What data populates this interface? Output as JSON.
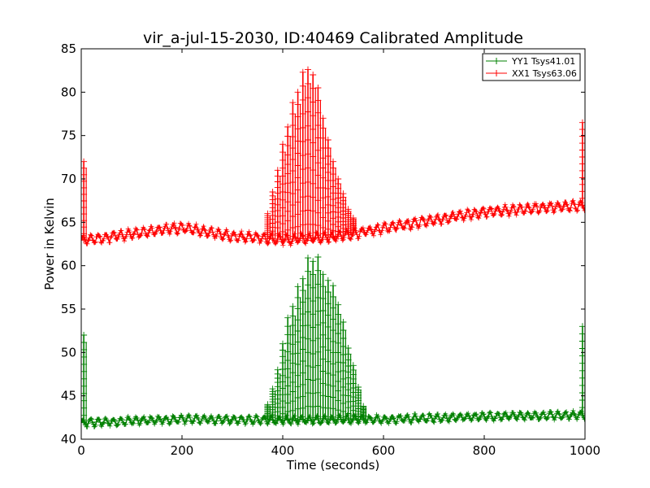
{
  "chart_data": {
    "type": "line",
    "title": "vir_a-jul-15-2030, ID:40469 Calibrated Amplitude",
    "xlabel": "Time (seconds)",
    "ylabel": "Power in Kelvin",
    "xlim": [
      0,
      1000
    ],
    "ylim": [
      40,
      85
    ],
    "xticks": [
      0,
      200,
      400,
      600,
      800,
      1000
    ],
    "yticks": [
      40,
      45,
      50,
      55,
      60,
      65,
      70,
      75,
      80,
      85
    ],
    "grid": false,
    "legend_position": "top-right",
    "marker": "+",
    "series": [
      {
        "name": "YY1 Tsys41.01",
        "color": "#008000",
        "baseline": [
          [
            0,
            41.9
          ],
          [
            200,
            42.3
          ],
          [
            400,
            42.2
          ],
          [
            600,
            42.3
          ],
          [
            800,
            42.6
          ],
          [
            1000,
            42.8
          ]
        ],
        "baseline_ripple": 0.4,
        "spikes": [
          [
            5,
            52.0
          ],
          [
            370,
            44.0
          ],
          [
            380,
            45.8
          ],
          [
            390,
            48.0
          ],
          [
            400,
            51.0
          ],
          [
            410,
            54.0
          ],
          [
            420,
            55.3
          ],
          [
            430,
            57.6
          ],
          [
            440,
            58.5
          ],
          [
            450,
            60.9
          ],
          [
            460,
            60.5
          ],
          [
            470,
            61.0
          ],
          [
            480,
            59.0
          ],
          [
            490,
            58.3
          ],
          [
            500,
            57.7
          ],
          [
            510,
            55.5
          ],
          [
            520,
            53.5
          ],
          [
            530,
            50.5
          ],
          [
            540,
            48.5
          ],
          [
            550,
            46.0
          ],
          [
            560,
            43.8
          ],
          [
            995,
            53.0
          ]
        ]
      },
      {
        "name": "XX1 Tsys63.06",
        "color": "#ff0000",
        "baseline": [
          [
            0,
            62.9
          ],
          [
            200,
            64.4
          ],
          [
            300,
            63.4
          ],
          [
            400,
            63.0
          ],
          [
            500,
            63.3
          ],
          [
            600,
            64.3
          ],
          [
            800,
            66.2
          ],
          [
            1000,
            67.0
          ]
        ],
        "baseline_ripple": 0.5,
        "spikes": [
          [
            5,
            72.0
          ],
          [
            370,
            66.0
          ],
          [
            380,
            68.5
          ],
          [
            390,
            71.0
          ],
          [
            400,
            74.0
          ],
          [
            410,
            76.0
          ],
          [
            420,
            78.8
          ],
          [
            430,
            80.0
          ],
          [
            440,
            82.3
          ],
          [
            450,
            82.6
          ],
          [
            460,
            82.0
          ],
          [
            470,
            80.5
          ],
          [
            480,
            77.0
          ],
          [
            490,
            74.5
          ],
          [
            500,
            72.0
          ],
          [
            510,
            70.0
          ],
          [
            520,
            68.3
          ],
          [
            530,
            66.5
          ],
          [
            540,
            65.5
          ],
          [
            995,
            76.5
          ]
        ]
      }
    ]
  }
}
